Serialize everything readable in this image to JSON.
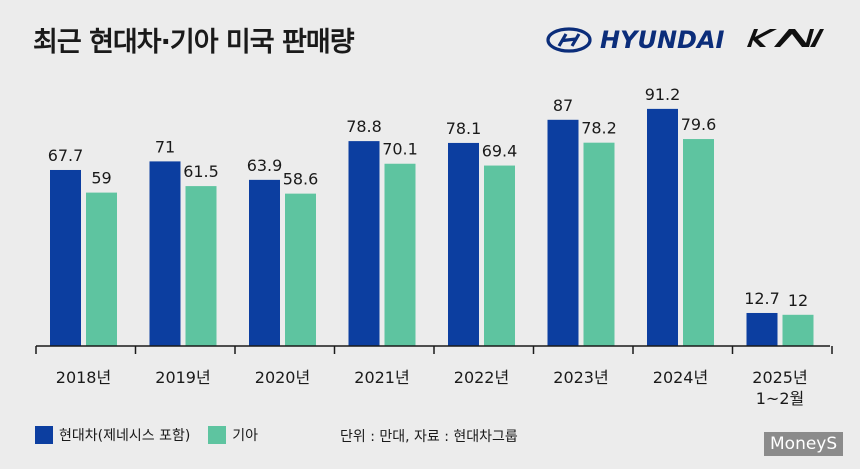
{
  "title": "최근 현대차·기아 미국 판매량",
  "brands": {
    "hyundai": "HYUNDAI",
    "kia": "KIA"
  },
  "colors": {
    "hyundai": "#0c3ea0",
    "kia": "#5ec4a0",
    "axis": "#1a1a1a"
  },
  "chart_data": {
    "type": "bar",
    "categories": [
      "2018년",
      "2019년",
      "2020년",
      "2021년",
      "2022년",
      "2023년",
      "2024년",
      "2025년\n1~2월"
    ],
    "series": [
      {
        "name": "현대차(제네시스 포함)",
        "values": [
          67.7,
          71,
          63.9,
          78.8,
          78.1,
          87,
          91.2,
          12.7
        ]
      },
      {
        "name": "기아",
        "values": [
          59,
          61.5,
          58.6,
          70.1,
          69.4,
          78.2,
          79.6,
          12
        ]
      }
    ],
    "value_labels": [
      [
        "67.7",
        "71",
        "63.9",
        "78.8",
        "78.1",
        "87",
        "91.2",
        "12.7"
      ],
      [
        "59",
        "61.5",
        "58.6",
        "70.1",
        "69.4",
        "78.2",
        "79.6",
        "12"
      ]
    ],
    "ylim": [
      0,
      100
    ],
    "grid": false,
    "legend": "bottom-left"
  },
  "legend": {
    "hyundai_label": "현대차(제네시스 포함)",
    "kia_label": "기아"
  },
  "source_note": "단위 : 만대, 자료 : 현대차그룹",
  "watermark": "MoneyS"
}
